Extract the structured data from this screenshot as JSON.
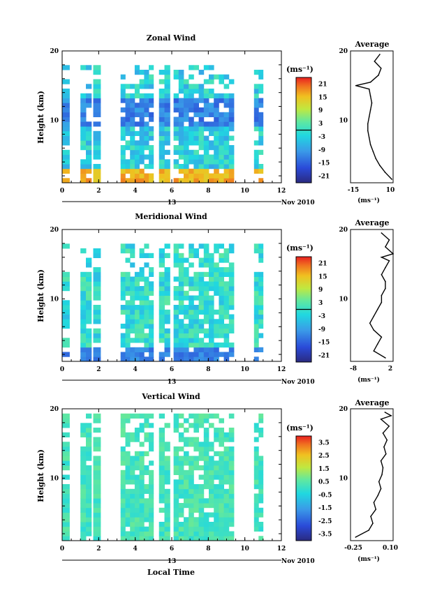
{
  "figure": {
    "date_label": "Nov 2010",
    "day_label": "13",
    "xlabel": "Local Time",
    "unit_label": "(ms⁻¹)"
  },
  "chart_data": [
    {
      "type": "heatmap",
      "title": "Zonal Wind",
      "xlabel": "",
      "ylabel": "Height (km)",
      "xlim": [
        0,
        12
      ],
      "ylim": [
        1,
        20
      ],
      "xticks": [
        0,
        2,
        4,
        6,
        8,
        10,
        12
      ],
      "yticks": [
        10,
        20
      ],
      "grid": false,
      "colorbar": {
        "label": "(ms⁻¹)",
        "range": [
          -24,
          24
        ],
        "ticks": [
          "21",
          "15",
          "9",
          "3",
          "-3",
          "-9",
          "-15",
          "-21"
        ],
        "contour_marker": 0
      },
      "data_columns": [
        [
          0,
          0.4
        ],
        [
          1.0,
          1.6
        ],
        [
          1.7,
          2.1
        ],
        [
          3.2,
          5.0
        ],
        [
          5.3,
          5.9
        ],
        [
          6.1,
          9.4
        ],
        [
          10.5,
          11.0
        ]
      ],
      "profile": {
        "title": "Average",
        "xlim": [
          -20,
          12
        ],
        "xticks": [
          "-15",
          "10"
        ],
        "xlabel": "(ms⁻¹)",
        "heights": [
          1.5,
          2.5,
          3.5,
          4.5,
          5.5,
          6.5,
          7.5,
          8.5,
          9.5,
          10.5,
          11.5,
          12.5,
          13.5,
          14.5,
          15.0,
          15.5,
          16.5,
          17.5,
          18.5,
          19.5
        ],
        "values": [
          11,
          6,
          2,
          -1,
          -3,
          -5,
          -6,
          -7,
          -7,
          -6,
          -5,
          -4,
          -5,
          -6,
          -16,
          -5,
          1,
          3,
          -2,
          2
        ]
      }
    },
    {
      "type": "heatmap",
      "title": "Meridional Wind",
      "xlabel": "",
      "ylabel": "Height (km)",
      "xlim": [
        0,
        12
      ],
      "ylim": [
        1,
        20
      ],
      "xticks": [
        0,
        2,
        4,
        6,
        8,
        10,
        12
      ],
      "yticks": [
        10,
        20
      ],
      "grid": false,
      "colorbar": {
        "label": "(ms⁻¹)",
        "range": [
          -24,
          24
        ],
        "ticks": [
          "21",
          "15",
          "9",
          "3",
          "-3",
          "-9",
          "-15",
          "-21"
        ],
        "contour_marker": 0
      },
      "data_columns": [
        [
          0,
          0.4
        ],
        [
          1.0,
          1.6
        ],
        [
          1.7,
          2.1
        ],
        [
          3.2,
          5.0
        ],
        [
          5.3,
          5.9
        ],
        [
          6.1,
          9.4
        ],
        [
          10.5,
          11.0
        ]
      ],
      "profile": {
        "title": "Average",
        "xlim": [
          -8,
          3
        ],
        "xticks": [
          "-8",
          "2"
        ],
        "xlabel": "(ms⁻¹)",
        "heights": [
          1.5,
          2.5,
          3.5,
          4.5,
          5.5,
          6.5,
          7.5,
          8.5,
          9.5,
          10.5,
          11.5,
          12.5,
          13.5,
          14.5,
          15.5,
          16.0,
          16.5,
          17.5,
          18.5,
          19.5
        ],
        "values": [
          1,
          -2,
          -1,
          0,
          -2,
          -3,
          -2,
          -1,
          0,
          0,
          1,
          1,
          0,
          1,
          2,
          0,
          3,
          1,
          2,
          0
        ]
      }
    },
    {
      "type": "heatmap",
      "title": "Vertical Wind",
      "xlabel": "Local Time",
      "ylabel": "Height (km)",
      "xlim": [
        0,
        12
      ],
      "ylim": [
        1,
        20
      ],
      "xticks": [
        0,
        2,
        4,
        6,
        8,
        10,
        12
      ],
      "yticks": [
        10,
        20
      ],
      "grid": false,
      "colorbar": {
        "label": "(ms⁻¹)",
        "range": [
          -4,
          4
        ],
        "ticks": [
          "3.5",
          "2.5",
          "1.5",
          "0.5",
          "-0.5",
          "-1.5",
          "-2.5",
          "-3.5"
        ],
        "contour_marker": null
      },
      "data_columns": [
        [
          0,
          0.4
        ],
        [
          1.0,
          1.6
        ],
        [
          1.7,
          2.1
        ],
        [
          3.2,
          5.0
        ],
        [
          5.3,
          5.9
        ],
        [
          6.1,
          9.4
        ],
        [
          10.5,
          11.0
        ]
      ],
      "profile": {
        "title": "Average",
        "xlim": [
          -0.3,
          0.12
        ],
        "xticks": [
          "-0.25",
          "0.10"
        ],
        "xlabel": "(ms⁻¹)",
        "heights": [
          1.5,
          2.5,
          3.5,
          4.5,
          5.5,
          6.5,
          7.5,
          8.5,
          9.5,
          10.5,
          11.5,
          12.5,
          13.5,
          14.5,
          15.5,
          16.5,
          17.5,
          18.5,
          19.0,
          19.5
        ],
        "values": [
          -0.25,
          -0.12,
          -0.08,
          -0.1,
          -0.05,
          -0.07,
          -0.03,
          0.0,
          -0.02,
          0.01,
          0.02,
          0.0,
          0.05,
          0.03,
          0.06,
          0.02,
          0.08,
          0.0,
          0.1,
          0.04
        ]
      }
    }
  ]
}
